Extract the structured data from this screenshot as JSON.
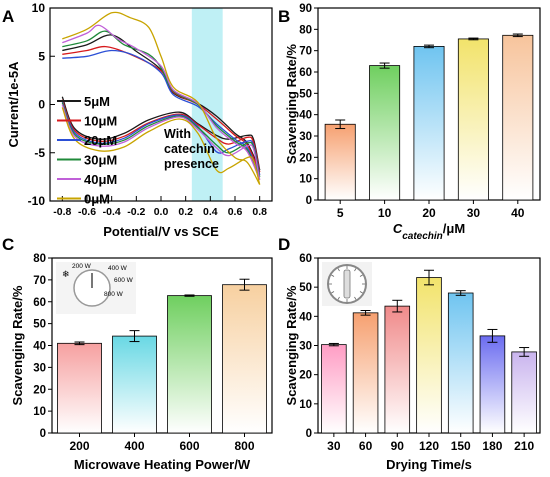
{
  "chart_data": [
    {
      "panel": "A",
      "type": "line",
      "xlabel": "Potential/V vs SCE",
      "ylabel": "Current/1e-5A",
      "xlim": [
        -0.9,
        0.9
      ],
      "ylim": [
        -10,
        10
      ],
      "xticks": [
        "-0.8",
        "-0.6",
        "-0.4",
        "-0.2",
        "0.0",
        "0.2",
        "0.4",
        "0.6",
        "0.8"
      ],
      "yticks": [
        "-10",
        "-5",
        "0",
        "5",
        "10"
      ],
      "highlight_band": [
        0.25,
        0.5
      ],
      "annotation": "With catechin presence",
      "series": [
        {
          "name": "5μM",
          "color": "#1a1a1a",
          "forward": [
            [
              -0.8,
              5.6
            ],
            [
              -0.6,
              6.2
            ],
            [
              -0.4,
              7.2
            ],
            [
              -0.2,
              5.5
            ],
            [
              0.0,
              3.6
            ],
            [
              0.1,
              1.2
            ],
            [
              0.3,
              0.1
            ],
            [
              0.45,
              -1.2
            ],
            [
              0.6,
              -3.0
            ],
            [
              0.7,
              -4.0
            ],
            [
              0.8,
              -6.8
            ]
          ],
          "reverse": [
            [
              0.8,
              -6.8
            ],
            [
              0.75,
              -3.6
            ],
            [
              0.7,
              -3.2
            ],
            [
              0.55,
              -3.6
            ],
            [
              0.45,
              -3.2
            ],
            [
              0.3,
              -2.0
            ],
            [
              0.15,
              -0.8
            ],
            [
              -0.1,
              -1.6
            ],
            [
              -0.3,
              -3.0
            ],
            [
              -0.5,
              -3.6
            ],
            [
              -0.7,
              -2.5
            ],
            [
              -0.8,
              0.8
            ]
          ]
        },
        {
          "name": "10μM",
          "color": "#d7191c",
          "forward": [
            [
              -0.8,
              5.2
            ],
            [
              -0.6,
              5.6
            ],
            [
              -0.45,
              6.0
            ],
            [
              -0.25,
              5.2
            ],
            [
              0.0,
              3.5
            ],
            [
              0.1,
              1.3
            ],
            [
              0.3,
              0.0
            ],
            [
              0.45,
              -1.5
            ],
            [
              0.6,
              -3.2
            ],
            [
              0.7,
              -4.2
            ],
            [
              0.8,
              -7.0
            ]
          ],
          "reverse": [
            [
              0.8,
              -7.0
            ],
            [
              0.75,
              -3.9
            ],
            [
              0.7,
              -3.4
            ],
            [
              0.55,
              -4.1
            ],
            [
              0.45,
              -3.5
            ],
            [
              0.3,
              -2.1
            ],
            [
              0.15,
              -1.0
            ],
            [
              -0.1,
              -1.9
            ],
            [
              -0.3,
              -3.3
            ],
            [
              -0.5,
              -3.8
            ],
            [
              -0.7,
              -2.7
            ],
            [
              -0.8,
              0.5
            ]
          ]
        },
        {
          "name": "20μM",
          "color": "#2b4fd6",
          "forward": [
            [
              -0.8,
              4.8
            ],
            [
              -0.6,
              5.0
            ],
            [
              -0.4,
              5.6
            ],
            [
              -0.2,
              5.0
            ],
            [
              0.0,
              3.3
            ],
            [
              0.1,
              1.0
            ],
            [
              0.3,
              -0.2
            ],
            [
              0.45,
              -2.0
            ],
            [
              0.6,
              -3.6
            ],
            [
              0.7,
              -4.5
            ],
            [
              0.8,
              -7.3
            ]
          ],
          "reverse": [
            [
              0.8,
              -7.3
            ],
            [
              0.75,
              -4.2
            ],
            [
              0.7,
              -3.8
            ],
            [
              0.55,
              -4.6
            ],
            [
              0.45,
              -4.9
            ],
            [
              0.3,
              -2.3
            ],
            [
              0.15,
              -1.1
            ],
            [
              -0.1,
              -2.0
            ],
            [
              -0.3,
              -3.5
            ],
            [
              -0.5,
              -4.0
            ],
            [
              -0.7,
              -2.9
            ],
            [
              -0.8,
              0.3
            ]
          ]
        },
        {
          "name": "30μM",
          "color": "#1f8a3a",
          "forward": [
            [
              -0.8,
              6.0
            ],
            [
              -0.6,
              6.6
            ],
            [
              -0.45,
              7.6
            ],
            [
              -0.3,
              6.2
            ],
            [
              -0.1,
              5.2
            ],
            [
              0.0,
              3.8
            ],
            [
              0.1,
              1.4
            ],
            [
              0.3,
              0.0
            ],
            [
              0.45,
              -2.2
            ],
            [
              0.6,
              -3.8
            ],
            [
              0.7,
              -4.7
            ],
            [
              0.8,
              -7.5
            ]
          ],
          "reverse": [
            [
              0.8,
              -7.5
            ],
            [
              0.75,
              -4.4
            ],
            [
              0.7,
              -4.0
            ],
            [
              0.55,
              -5.0
            ],
            [
              0.45,
              -4.2
            ],
            [
              0.3,
              -2.4
            ],
            [
              0.15,
              -1.2
            ],
            [
              -0.1,
              -2.2
            ],
            [
              -0.3,
              -3.7
            ],
            [
              -0.5,
              -4.1
            ],
            [
              -0.7,
              -3.1
            ],
            [
              -0.8,
              0.2
            ]
          ]
        },
        {
          "name": "40μM",
          "color": "#c060d8",
          "forward": [
            [
              -0.8,
              6.4
            ],
            [
              -0.6,
              7.4
            ],
            [
              -0.5,
              8.2
            ],
            [
              -0.35,
              6.8
            ],
            [
              -0.2,
              5.8
            ],
            [
              0.0,
              4.0
            ],
            [
              0.1,
              1.5
            ],
            [
              0.3,
              0.1
            ],
            [
              0.45,
              -2.4
            ],
            [
              0.6,
              -4.0
            ],
            [
              0.7,
              -4.9
            ],
            [
              0.8,
              -7.8
            ]
          ],
          "reverse": [
            [
              0.8,
              -7.8
            ],
            [
              0.75,
              -4.6
            ],
            [
              0.7,
              -4.3
            ],
            [
              0.55,
              -5.3
            ],
            [
              0.45,
              -4.5
            ],
            [
              0.3,
              -2.6
            ],
            [
              0.15,
              -1.3
            ],
            [
              -0.1,
              -2.4
            ],
            [
              -0.3,
              -3.9
            ],
            [
              -0.5,
              -4.3
            ],
            [
              -0.7,
              -3.3
            ],
            [
              -0.8,
              0.0
            ]
          ]
        },
        {
          "name": "0μM",
          "color": "#c8a400",
          "forward": [
            [
              -0.8,
              6.8
            ],
            [
              -0.6,
              7.8
            ],
            [
              -0.4,
              9.5
            ],
            [
              -0.25,
              9.0
            ],
            [
              -0.1,
              8.0
            ],
            [
              0.0,
              5.0
            ],
            [
              0.1,
              1.8
            ],
            [
              0.3,
              0.2
            ],
            [
              0.45,
              -3.5
            ],
            [
              0.6,
              -5.5
            ],
            [
              0.7,
              -6.0
            ],
            [
              0.8,
              -8.3
            ]
          ],
          "reverse": [
            [
              0.8,
              -8.3
            ],
            [
              0.75,
              -5.8
            ],
            [
              0.7,
              -5.5
            ],
            [
              0.55,
              -6.6
            ],
            [
              0.45,
              -6.8
            ],
            [
              0.3,
              -3.0
            ],
            [
              0.15,
              -1.5
            ],
            [
              -0.1,
              -2.8
            ],
            [
              -0.3,
              -4.4
            ],
            [
              -0.5,
              -4.8
            ],
            [
              -0.7,
              -3.6
            ],
            [
              -0.8,
              -0.3
            ]
          ]
        }
      ]
    },
    {
      "panel": "B",
      "type": "bar",
      "xlabel": "Ccatechin/μM",
      "xlabel_main": "C",
      "xlabel_sub": "catechin",
      "xlabel_unit": "/μM",
      "ylabel": "Scavenging Rate/%",
      "ylim": [
        0,
        90
      ],
      "yticks": [
        "0",
        "10",
        "20",
        "30",
        "40",
        "50",
        "60",
        "70",
        "80",
        "90"
      ],
      "categories": [
        "5",
        "10",
        "20",
        "30",
        "40"
      ],
      "values": [
        35.5,
        63.0,
        72.0,
        75.5,
        77.2
      ],
      "errors": [
        2.0,
        1.2,
        0.6,
        0.4,
        0.6
      ],
      "colors": [
        "#f6a070",
        "#6fcf5f",
        "#6fc4f0",
        "#f2e36b",
        "#f7c49c"
      ]
    },
    {
      "panel": "C",
      "type": "bar",
      "xlabel": "Microwave Heating Power/W",
      "ylabel": "Scavenging Rate/%",
      "ylim": [
        0,
        80
      ],
      "yticks": [
        "0",
        "10",
        "20",
        "30",
        "40",
        "50",
        "60",
        "70",
        "80"
      ],
      "categories": [
        "200",
        "400",
        "600",
        "800"
      ],
      "values": [
        41.0,
        44.3,
        62.8,
        67.8
      ],
      "errors": [
        0.6,
        2.5,
        0.3,
        2.5
      ],
      "colors": [
        "#f6a0a0",
        "#69d8e4",
        "#6fcf5f",
        "#f7d0a0"
      ],
      "dial_labels": [
        "200 W",
        "400 W",
        "600 W",
        "800 W"
      ]
    },
    {
      "panel": "D",
      "type": "bar",
      "xlabel": "Drying Time/s",
      "ylabel": "Scavenging Rate/%",
      "ylim": [
        0,
        60
      ],
      "yticks": [
        "0",
        "10",
        "20",
        "30",
        "40",
        "50",
        "60"
      ],
      "categories": [
        "30",
        "60",
        "90",
        "120",
        "150",
        "180",
        "210"
      ],
      "values": [
        30.3,
        41.2,
        43.5,
        53.3,
        48.0,
        33.3,
        27.8
      ],
      "errors": [
        0.4,
        0.8,
        2.0,
        2.5,
        0.8,
        2.2,
        1.5
      ],
      "colors": [
        "#ff9dc4",
        "#f6a070",
        "#f08a8a",
        "#f2e36b",
        "#6fc4f0",
        "#6b6cf0",
        "#c9b4ee"
      ]
    }
  ]
}
